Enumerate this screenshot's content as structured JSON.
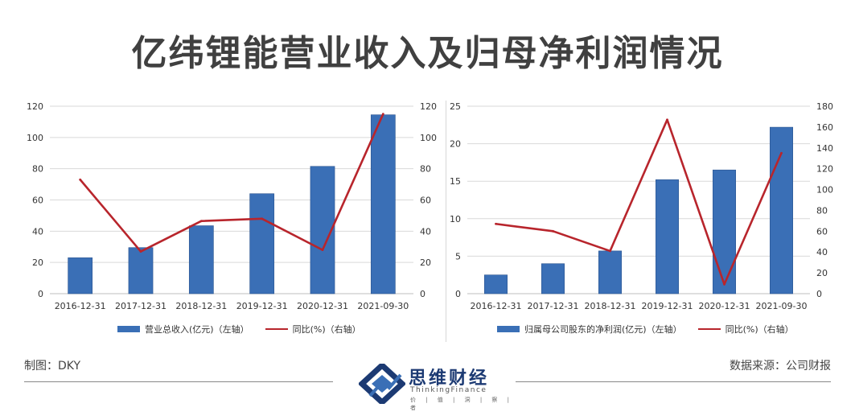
{
  "page": {
    "title": "亿纬锂能营业收入及归母净利润情况",
    "credit": "制图：DKY",
    "source": "数据来源：公司财报"
  },
  "logo": {
    "name": "思维财经",
    "english": "ThinkingFinance",
    "tagline": "价 | 值 | 洞 | 察 | 者"
  },
  "colors": {
    "bar": "#3a6fb6",
    "line": "#b8252c",
    "grid": "#d9d9d9",
    "title": "#404040"
  },
  "chart_data": [
    {
      "type": "bar",
      "categories": [
        "2016-12-31",
        "2017-12-31",
        "2018-12-31",
        "2019-12-31",
        "2020-12-31",
        "2021-09-30"
      ],
      "series": [
        {
          "name": "营业总收入(亿元)（左轴）",
          "type": "bar",
          "axis": "left",
          "values": [
            23,
            29.5,
            43.5,
            64,
            81.5,
            114.5
          ]
        },
        {
          "name": "同比(%)（右轴）",
          "type": "line",
          "axis": "right",
          "values": [
            73,
            27,
            46.5,
            48,
            28,
            115
          ]
        }
      ],
      "y_left": {
        "min": 0,
        "max": 120,
        "ticks": [
          0,
          20,
          40,
          60,
          80,
          100,
          120
        ]
      },
      "y_right": {
        "min": 0,
        "max": 120,
        "ticks": [
          0,
          20,
          40,
          60,
          80,
          100,
          120
        ]
      },
      "grid": true,
      "legend_position": "bottom"
    },
    {
      "type": "bar",
      "categories": [
        "2016-12-31",
        "2017-12-31",
        "2018-12-31",
        "2019-12-31",
        "2020-12-31",
        "2021-09-30"
      ],
      "series": [
        {
          "name": "归属母公司股东的净利润(亿元)（左轴）",
          "type": "bar",
          "axis": "left",
          "values": [
            2.5,
            4,
            5.7,
            15.2,
            16.5,
            22.2
          ]
        },
        {
          "name": "同比(%)（右轴）",
          "type": "line",
          "axis": "right",
          "values": [
            67,
            60,
            41,
            167,
            9,
            135
          ]
        }
      ],
      "y_left": {
        "min": 0,
        "max": 25,
        "ticks": [
          0,
          5,
          10,
          15,
          20,
          25
        ]
      },
      "y_right": {
        "min": 0,
        "max": 180,
        "ticks": [
          0,
          20,
          40,
          60,
          80,
          100,
          120,
          140,
          160,
          180
        ]
      },
      "grid": true,
      "legend_position": "bottom"
    }
  ]
}
